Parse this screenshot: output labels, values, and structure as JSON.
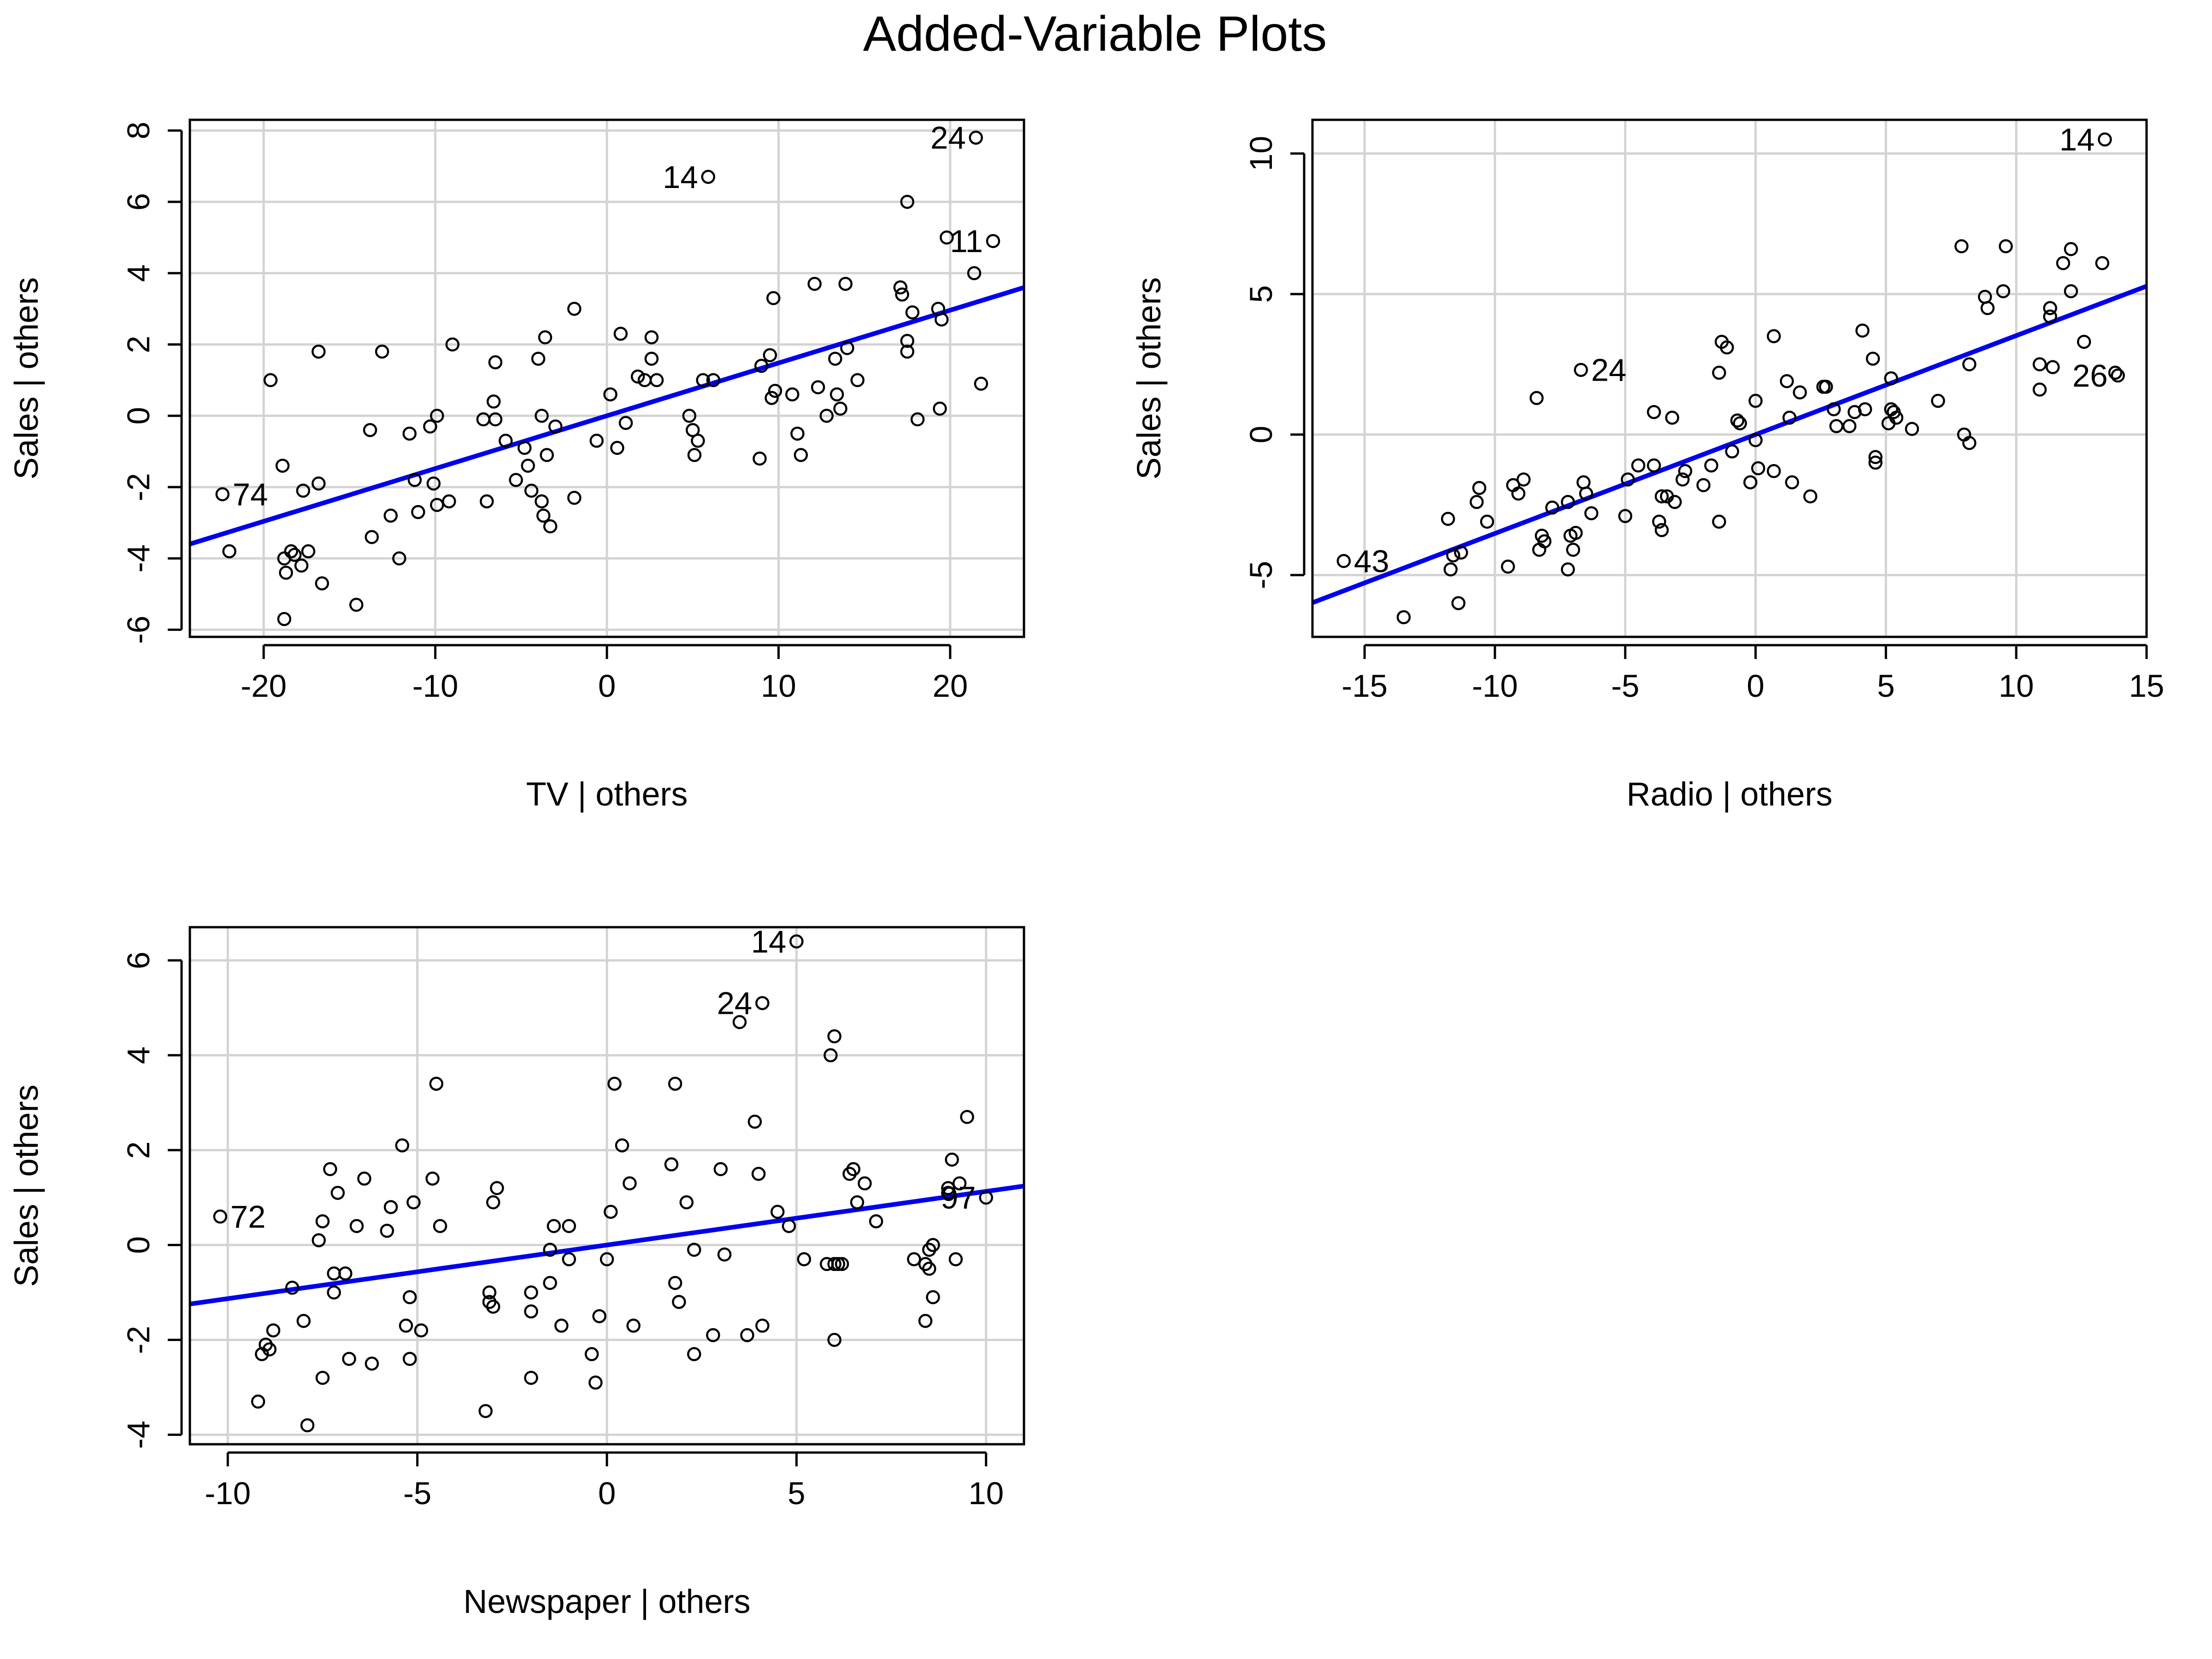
{
  "title": "Added-Variable Plots",
  "colors": {
    "line": "#0000ee",
    "grid": "#d3d3d3",
    "points": "#000000",
    "frame": "#000000"
  },
  "chart_data": [
    {
      "type": "scatter",
      "xlabel": "TV | others",
      "ylabel": "Sales  | others",
      "xlim": [
        -24.3,
        24.3
      ],
      "ylim": [
        -6.2,
        8.3
      ],
      "xticks": [
        -20,
        -10,
        0,
        10,
        20
      ],
      "yticks": [
        -6,
        -4,
        -2,
        0,
        2,
        4,
        6,
        8
      ],
      "grid": true,
      "fit_line": {
        "slope": 0.148,
        "intercept": 0.0
      },
      "labels": [
        {
          "text": "74",
          "x": -22.4,
          "y": -2.2,
          "side": "right"
        },
        {
          "text": "14",
          "x": 5.9,
          "y": 6.7,
          "side": "left"
        },
        {
          "text": "24",
          "x": 21.5,
          "y": 7.8,
          "side": "left"
        },
        {
          "text": "11",
          "x": 22.5,
          "y": 4.9,
          "side": "left"
        }
      ],
      "points": [
        [
          -22.4,
          -2.2
        ],
        [
          -22.0,
          -3.8
        ],
        [
          -19.6,
          1.0
        ],
        [
          -18.9,
          -1.4
        ],
        [
          -18.8,
          -4.0
        ],
        [
          -18.7,
          -4.4
        ],
        [
          -18.8,
          -5.7
        ],
        [
          -18.4,
          -3.8
        ],
        [
          -18.2,
          -3.9
        ],
        [
          -17.8,
          -4.2
        ],
        [
          -17.7,
          -2.1
        ],
        [
          -17.4,
          -3.8
        ],
        [
          -16.8,
          1.8
        ],
        [
          -16.8,
          -1.9
        ],
        [
          -16.6,
          -4.7
        ],
        [
          -14.6,
          -5.3
        ],
        [
          -13.8,
          -0.4
        ],
        [
          -13.7,
          -3.4
        ],
        [
          -13.1,
          1.8
        ],
        [
          -12.6,
          -2.8
        ],
        [
          -12.1,
          -4.0
        ],
        [
          -11.5,
          -0.5
        ],
        [
          -11.2,
          -1.8
        ],
        [
          -11.0,
          -2.7
        ],
        [
          -10.3,
          -0.3
        ],
        [
          -10.1,
          -1.9
        ],
        [
          -9.9,
          -2.5
        ],
        [
          -9.9,
          0.0
        ],
        [
          -9.2,
          -2.4
        ],
        [
          -9.0,
          2.0
        ],
        [
          -7.2,
          -0.1
        ],
        [
          -7.0,
          -2.4
        ],
        [
          -6.6,
          0.4
        ],
        [
          -6.5,
          1.5
        ],
        [
          -6.5,
          -0.1
        ],
        [
          -5.9,
          -0.7
        ],
        [
          -5.3,
          -1.8
        ],
        [
          -4.8,
          -0.9
        ],
        [
          -4.6,
          -1.4
        ],
        [
          -4.4,
          -2.1
        ],
        [
          -4.0,
          1.6
        ],
        [
          -3.8,
          0.0
        ],
        [
          -3.8,
          -2.4
        ],
        [
          -3.7,
          -2.8
        ],
        [
          -3.6,
          2.2
        ],
        [
          -3.5,
          -1.1
        ],
        [
          -3.3,
          -3.1
        ],
        [
          -3.0,
          -0.3
        ],
        [
          -1.9,
          3.0
        ],
        [
          -1.9,
          -2.3
        ],
        [
          -0.6,
          -0.7
        ],
        [
          0.2,
          0.6
        ],
        [
          0.6,
          -0.9
        ],
        [
          0.8,
          2.3
        ],
        [
          1.1,
          -0.2
        ],
        [
          1.8,
          1.1
        ],
        [
          2.2,
          1.0
        ],
        [
          2.6,
          2.2
        ],
        [
          2.6,
          1.6
        ],
        [
          2.9,
          1.0
        ],
        [
          4.8,
          0.0
        ],
        [
          5.0,
          -0.4
        ],
        [
          5.1,
          -1.1
        ],
        [
          5.3,
          -0.7
        ],
        [
          5.6,
          1.0
        ],
        [
          5.9,
          6.7
        ],
        [
          6.2,
          1.0
        ],
        [
          8.9,
          -1.2
        ],
        [
          9.0,
          1.4
        ],
        [
          9.5,
          1.7
        ],
        [
          9.6,
          0.5
        ],
        [
          9.7,
          3.3
        ],
        [
          9.8,
          0.7
        ],
        [
          10.8,
          0.6
        ],
        [
          11.1,
          -0.5
        ],
        [
          11.3,
          -1.1
        ],
        [
          12.1,
          3.7
        ],
        [
          12.3,
          0.8
        ],
        [
          12.8,
          0.0
        ],
        [
          13.3,
          1.6
        ],
        [
          13.4,
          0.6
        ],
        [
          13.6,
          0.2
        ],
        [
          13.9,
          3.7
        ],
        [
          14.0,
          1.9
        ],
        [
          14.6,
          1.0
        ],
        [
          17.1,
          3.6
        ],
        [
          17.2,
          3.4
        ],
        [
          17.5,
          6.0
        ],
        [
          17.5,
          2.1
        ],
        [
          17.5,
          1.8
        ],
        [
          17.8,
          2.9
        ],
        [
          18.1,
          -0.1
        ],
        [
          19.3,
          3.0
        ],
        [
          19.4,
          0.2
        ],
        [
          19.5,
          2.7
        ],
        [
          19.8,
          5.0
        ],
        [
          21.4,
          4.0
        ],
        [
          21.5,
          7.8
        ],
        [
          21.8,
          0.9
        ],
        [
          22.5,
          4.9
        ]
      ]
    },
    {
      "type": "scatter",
      "xlabel": "Radio | others",
      "ylabel": "Sales  | others",
      "xlim": [
        -17.0,
        15.0
      ],
      "ylim": [
        -7.2,
        11.2
      ],
      "xticks": [
        -15,
        -10,
        -5,
        0,
        5,
        10,
        15
      ],
      "yticks": [
        -5,
        0,
        5,
        10
      ],
      "grid": true,
      "fit_line": {
        "slope": 0.352,
        "intercept": 0.0
      },
      "labels": [
        {
          "text": "43",
          "x": -15.8,
          "y": -4.5,
          "side": "right"
        },
        {
          "text": "24",
          "x": -6.7,
          "y": 2.3,
          "side": "right"
        },
        {
          "text": "14",
          "x": 13.4,
          "y": 10.5,
          "side": "left"
        },
        {
          "text": "26",
          "x": 13.9,
          "y": 2.1,
          "side": "left"
        }
      ],
      "points": [
        [
          -15.8,
          -4.5
        ],
        [
          -13.5,
          -6.5
        ],
        [
          -11.8,
          -3.0
        ],
        [
          -11.7,
          -4.8
        ],
        [
          -11.6,
          -4.3
        ],
        [
          -11.4,
          -6.0
        ],
        [
          -11.3,
          -4.2
        ],
        [
          -10.7,
          -2.4
        ],
        [
          -10.6,
          -1.9
        ],
        [
          -10.3,
          -3.1
        ],
        [
          -9.5,
          -4.7
        ],
        [
          -9.3,
          -1.8
        ],
        [
          -9.1,
          -2.1
        ],
        [
          -8.9,
          -1.6
        ],
        [
          -8.4,
          1.3
        ],
        [
          -8.3,
          -4.1
        ],
        [
          -8.2,
          -3.6
        ],
        [
          -8.1,
          -3.8
        ],
        [
          -7.8,
          -2.6
        ],
        [
          -7.2,
          -4.8
        ],
        [
          -7.2,
          -2.4
        ],
        [
          -7.1,
          -3.6
        ],
        [
          -7.0,
          -4.1
        ],
        [
          -6.9,
          -3.5
        ],
        [
          -6.7,
          2.3
        ],
        [
          -6.6,
          -1.7
        ],
        [
          -6.5,
          -2.1
        ],
        [
          -6.3,
          -2.8
        ],
        [
          -5.0,
          -2.9
        ],
        [
          -4.9,
          -1.6
        ],
        [
          -4.5,
          -1.1
        ],
        [
          -3.9,
          -1.1
        ],
        [
          -3.9,
          0.8
        ],
        [
          -3.7,
          -3.1
        ],
        [
          -3.6,
          -3.4
        ],
        [
          -3.6,
          -2.2
        ],
        [
          -3.4,
          -2.2
        ],
        [
          -3.2,
          0.6
        ],
        [
          -3.1,
          -2.4
        ],
        [
          -2.8,
          -1.6
        ],
        [
          -2.7,
          -1.3
        ],
        [
          -2.0,
          -1.8
        ],
        [
          -1.7,
          -1.1
        ],
        [
          -1.4,
          2.2
        ],
        [
          -1.4,
          -3.1
        ],
        [
          -1.3,
          3.3
        ],
        [
          -1.1,
          3.1
        ],
        [
          -0.9,
          -0.6
        ],
        [
          -0.7,
          0.5
        ],
        [
          -0.6,
          0.4
        ],
        [
          -0.2,
          -1.7
        ],
        [
          0.0,
          1.2
        ],
        [
          0.0,
          -0.2
        ],
        [
          0.1,
          -1.2
        ],
        [
          0.7,
          3.5
        ],
        [
          0.7,
          -1.3
        ],
        [
          1.2,
          1.9
        ],
        [
          1.3,
          0.6
        ],
        [
          1.4,
          -1.7
        ],
        [
          1.7,
          1.5
        ],
        [
          2.1,
          -2.2
        ],
        [
          2.6,
          1.7
        ],
        [
          2.7,
          1.7
        ],
        [
          3.0,
          0.9
        ],
        [
          3.1,
          0.3
        ],
        [
          3.6,
          0.3
        ],
        [
          3.8,
          0.8
        ],
        [
          4.1,
          3.7
        ],
        [
          4.2,
          0.9
        ],
        [
          4.5,
          2.7
        ],
        [
          4.6,
          -0.8
        ],
        [
          4.6,
          -1.0
        ],
        [
          5.1,
          0.4
        ],
        [
          5.2,
          2.0
        ],
        [
          5.2,
          0.9
        ],
        [
          5.3,
          0.8
        ],
        [
          5.4,
          0.6
        ],
        [
          6.0,
          0.2
        ],
        [
          7.0,
          1.2
        ],
        [
          7.9,
          6.7
        ],
        [
          8.0,
          -0.0
        ],
        [
          8.2,
          2.5
        ],
        [
          8.2,
          -0.3
        ],
        [
          8.8,
          4.9
        ],
        [
          8.9,
          4.5
        ],
        [
          9.5,
          5.1
        ],
        [
          9.6,
          6.7
        ],
        [
          10.9,
          2.5
        ],
        [
          10.9,
          1.6
        ],
        [
          11.3,
          4.5
        ],
        [
          11.3,
          4.2
        ],
        [
          11.4,
          2.4
        ],
        [
          11.8,
          6.1
        ],
        [
          12.1,
          6.6
        ],
        [
          12.1,
          5.1
        ],
        [
          12.6,
          3.3
        ],
        [
          13.3,
          6.1
        ],
        [
          13.4,
          10.5
        ],
        [
          13.8,
          2.2
        ],
        [
          13.9,
          2.1
        ]
      ]
    },
    {
      "type": "scatter",
      "xlabel": "Newspaper | others",
      "ylabel": "Sales  | others",
      "xlim": [
        -11.0,
        11.0
      ],
      "ylim": [
        -4.2,
        6.7
      ],
      "xticks": [
        -10,
        -5,
        0,
        5,
        10
      ],
      "yticks": [
        -4,
        -2,
        0,
        2,
        4,
        6
      ],
      "grid": true,
      "fit_line": {
        "slope": 0.113,
        "intercept": 0.0
      },
      "labels": [
        {
          "text": "72",
          "x": -10.2,
          "y": 0.6,
          "side": "right"
        },
        {
          "text": "14",
          "x": 5.0,
          "y": 6.4,
          "side": "left"
        },
        {
          "text": "24",
          "x": 4.1,
          "y": 5.1,
          "side": "left"
        },
        {
          "text": "97",
          "x": 10.0,
          "y": 1.0,
          "side": "left"
        }
      ],
      "points": [
        [
          -10.2,
          0.6
        ],
        [
          -9.2,
          -3.3
        ],
        [
          -9.1,
          -2.3
        ],
        [
          -9.0,
          -2.1
        ],
        [
          -8.9,
          -2.2
        ],
        [
          -8.8,
          -1.8
        ],
        [
          -8.3,
          -0.9
        ],
        [
          -8.0,
          -1.6
        ],
        [
          -7.9,
          -3.8
        ],
        [
          -7.6,
          0.1
        ],
        [
          -7.5,
          0.5
        ],
        [
          -7.5,
          -2.8
        ],
        [
          -7.3,
          1.6
        ],
        [
          -7.2,
          -1.0
        ],
        [
          -7.2,
          -0.6
        ],
        [
          -7.1,
          1.1
        ],
        [
          -6.9,
          -0.6
        ],
        [
          -6.8,
          -2.4
        ],
        [
          -6.6,
          0.4
        ],
        [
          -6.4,
          1.4
        ],
        [
          -6.2,
          -2.5
        ],
        [
          -5.8,
          0.3
        ],
        [
          -5.7,
          0.8
        ],
        [
          -5.4,
          2.1
        ],
        [
          -5.3,
          -1.7
        ],
        [
          -5.2,
          -1.1
        ],
        [
          -5.2,
          -2.4
        ],
        [
          -5.1,
          0.9
        ],
        [
          -4.9,
          -1.8
        ],
        [
          -4.6,
          1.4
        ],
        [
          -4.5,
          3.4
        ],
        [
          -4.4,
          0.4
        ],
        [
          -3.2,
          -3.5
        ],
        [
          -3.1,
          -1.0
        ],
        [
          -3.1,
          -1.2
        ],
        [
          -3.0,
          0.9
        ],
        [
          -3.0,
          -1.3
        ],
        [
          -2.9,
          1.2
        ],
        [
          -2.0,
          -2.8
        ],
        [
          -2.0,
          -1.0
        ],
        [
          -2.0,
          -1.4
        ],
        [
          -1.5,
          -0.1
        ],
        [
          -1.5,
          -0.8
        ],
        [
          -1.4,
          0.4
        ],
        [
          -1.2,
          -1.7
        ],
        [
          -1.0,
          -0.3
        ],
        [
          -1.0,
          0.4
        ],
        [
          -0.4,
          -2.3
        ],
        [
          -0.3,
          -2.9
        ],
        [
          -0.2,
          -1.5
        ],
        [
          0.0,
          -0.3
        ],
        [
          0.1,
          0.7
        ],
        [
          0.2,
          3.4
        ],
        [
          0.4,
          2.1
        ],
        [
          0.6,
          1.3
        ],
        [
          0.7,
          -1.7
        ],
        [
          1.7,
          1.7
        ],
        [
          1.8,
          3.4
        ],
        [
          1.8,
          -0.8
        ],
        [
          1.9,
          -1.2
        ],
        [
          2.1,
          0.9
        ],
        [
          2.3,
          -0.1
        ],
        [
          2.3,
          -2.3
        ],
        [
          2.8,
          -1.9
        ],
        [
          3.0,
          1.6
        ],
        [
          3.1,
          -0.2
        ],
        [
          3.5,
          4.7
        ],
        [
          3.7,
          -1.9
        ],
        [
          3.9,
          2.6
        ],
        [
          4.0,
          1.5
        ],
        [
          4.1,
          5.1
        ],
        [
          4.1,
          -1.7
        ],
        [
          4.5,
          0.7
        ],
        [
          4.8,
          0.4
        ],
        [
          5.0,
          6.4
        ],
        [
          5.2,
          -0.3
        ],
        [
          5.8,
          -0.4
        ],
        [
          5.9,
          4.0
        ],
        [
          6.0,
          4.4
        ],
        [
          6.0,
          -0.4
        ],
        [
          6.0,
          -2.0
        ],
        [
          6.1,
          -0.4
        ],
        [
          6.2,
          -0.4
        ],
        [
          6.4,
          1.5
        ],
        [
          6.5,
          1.6
        ],
        [
          6.6,
          0.9
        ],
        [
          6.8,
          1.3
        ],
        [
          7.1,
          0.5
        ],
        [
          8.1,
          -0.3
        ],
        [
          8.4,
          -1.6
        ],
        [
          8.4,
          -0.4
        ],
        [
          8.5,
          -0.5
        ],
        [
          8.5,
          -0.1
        ],
        [
          8.6,
          -1.1
        ],
        [
          8.6,
          -0.0
        ],
        [
          9.0,
          1.1
        ],
        [
          9.0,
          1.2
        ],
        [
          9.1,
          1.8
        ],
        [
          9.2,
          -0.3
        ],
        [
          9.3,
          1.3
        ],
        [
          9.5,
          2.7
        ],
        [
          10.0,
          1.0
        ]
      ]
    }
  ]
}
